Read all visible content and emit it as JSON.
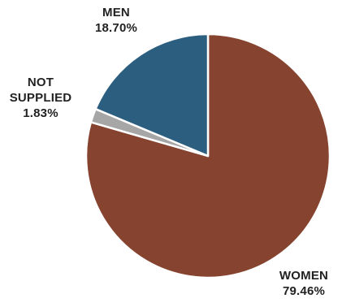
{
  "chart_data": {
    "type": "pie",
    "title": "",
    "slices": [
      {
        "label": "WOMEN",
        "label_lines": [
          "WOMEN"
        ],
        "value": 79.46,
        "value_text": "79.46%",
        "color": "#86432f"
      },
      {
        "label": "NOT SUPPLIED",
        "label_lines": [
          "NOT",
          "SUPPLIED"
        ],
        "value": 1.83,
        "value_text": "1.83%",
        "color": "#a6a6a6"
      },
      {
        "label": "MEN",
        "label_lines": [
          "MEN"
        ],
        "value": 18.7,
        "value_text": "18.70%",
        "color": "#2c5e80"
      }
    ],
    "start_angle_deg": 0,
    "direction": "clockwise",
    "legend": "none",
    "label_position": "outside"
  }
}
